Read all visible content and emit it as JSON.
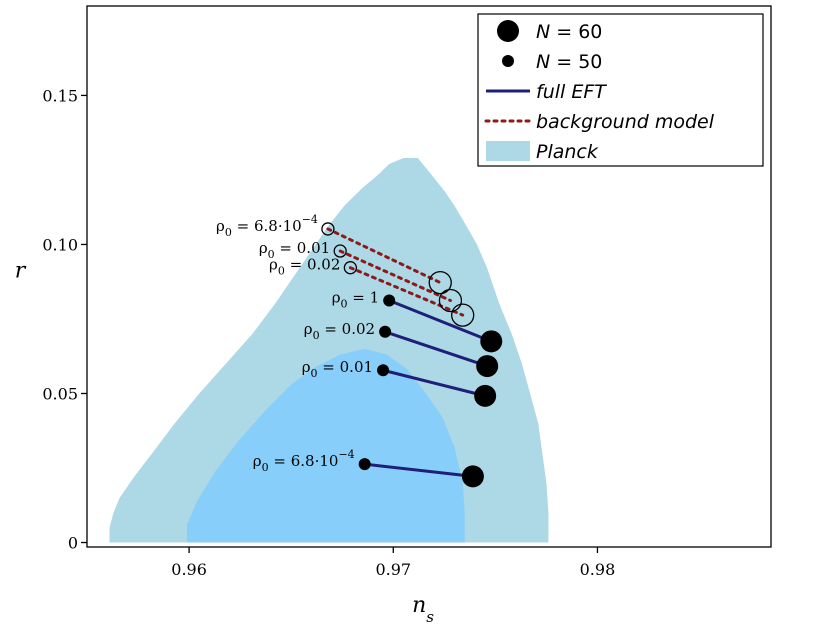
{
  "colors": {
    "planck_outer": "#add8e6",
    "planck_inner": "#87cefa",
    "full_eft": "#1f1f7a",
    "background_model": "#8b1a1a",
    "marker": "#000000"
  },
  "chart_data": {
    "type": "scatter",
    "xlabel": "n",
    "xlabel_sub": "s",
    "ylabel": "r",
    "xlim": [
      0.955,
      0.9885
    ],
    "ylim": [
      -0.0015,
      0.18
    ],
    "xticks": [
      0.96,
      0.97,
      0.98
    ],
    "xtick_labels": [
      "0.96",
      "0.97",
      "0.98"
    ],
    "yticks": [
      0,
      0.05,
      0.1,
      0.15
    ],
    "ytick_labels": [
      "0",
      "0.05",
      "0.10",
      "0.15"
    ],
    "legend": {
      "position": "top-right",
      "entries": [
        {
          "kind": "big-dot",
          "label_italic": "N",
          "label_rest": " = 60"
        },
        {
          "kind": "small-dot",
          "label_italic": "N",
          "label_rest": " = 50"
        },
        {
          "kind": "solid-line",
          "label_italic": "full EFT",
          "label_rest": ""
        },
        {
          "kind": "dotted-line",
          "label_italic": "background model",
          "label_rest": ""
        },
        {
          "kind": "patch",
          "label_italic": "Planck",
          "label_rest": ""
        }
      ]
    },
    "planck_outer_contour": [
      [
        0.9561,
        0.0
      ],
      [
        0.9561,
        0.005
      ],
      [
        0.9563,
        0.01
      ],
      [
        0.9566,
        0.015
      ],
      [
        0.9573,
        0.022
      ],
      [
        0.9582,
        0.03
      ],
      [
        0.9593,
        0.04
      ],
      [
        0.9605,
        0.05
      ],
      [
        0.9618,
        0.06
      ],
      [
        0.9631,
        0.07
      ],
      [
        0.9642,
        0.08
      ],
      [
        0.9652,
        0.09
      ],
      [
        0.9662,
        0.1
      ],
      [
        0.9668,
        0.106
      ],
      [
        0.9676,
        0.113
      ],
      [
        0.9685,
        0.119
      ],
      [
        0.9692,
        0.123
      ],
      [
        0.9698,
        0.127
      ],
      [
        0.9705,
        0.129
      ],
      [
        0.9712,
        0.129
      ],
      [
        0.9718,
        0.124
      ],
      [
        0.9725,
        0.118
      ],
      [
        0.973,
        0.113
      ],
      [
        0.9736,
        0.106
      ],
      [
        0.9741,
        0.1
      ],
      [
        0.9746,
        0.092
      ],
      [
        0.9752,
        0.08
      ],
      [
        0.9758,
        0.07
      ],
      [
        0.9763,
        0.06
      ],
      [
        0.9767,
        0.05
      ],
      [
        0.9771,
        0.04
      ],
      [
        0.9773,
        0.03
      ],
      [
        0.9775,
        0.02
      ],
      [
        0.9776,
        0.01
      ],
      [
        0.9776,
        0.0
      ]
    ],
    "planck_inner_contour": [
      [
        0.9599,
        0.0
      ],
      [
        0.9599,
        0.006
      ],
      [
        0.9604,
        0.014
      ],
      [
        0.9613,
        0.024
      ],
      [
        0.9624,
        0.034
      ],
      [
        0.9637,
        0.044
      ],
      [
        0.965,
        0.053
      ],
      [
        0.9662,
        0.059
      ],
      [
        0.9674,
        0.063
      ],
      [
        0.9686,
        0.065
      ],
      [
        0.9697,
        0.063
      ],
      [
        0.9707,
        0.058
      ],
      [
        0.9716,
        0.05
      ],
      [
        0.9724,
        0.042
      ],
      [
        0.973,
        0.032
      ],
      [
        0.9734,
        0.02
      ],
      [
        0.9735,
        0.01
      ],
      [
        0.9735,
        0.0
      ]
    ],
    "series": [
      {
        "name": "full EFT",
        "rho_label": "6.8·10",
        "rho_exp": "−4",
        "n50": [
          0.9686,
          0.0263
        ],
        "n60": [
          0.9739,
          0.0222
        ]
      },
      {
        "name": "full EFT",
        "rho_label": "0.01",
        "rho_exp": "",
        "n50": [
          0.9695,
          0.0578
        ],
        "n60": [
          0.9745,
          0.0492
        ]
      },
      {
        "name": "full EFT",
        "rho_label": "0.02",
        "rho_exp": "",
        "n50": [
          0.9696,
          0.0707
        ],
        "n60": [
          0.9746,
          0.0592
        ]
      },
      {
        "name": "full EFT",
        "rho_label": "1",
        "rho_exp": "",
        "n50": [
          0.9698,
          0.0812
        ],
        "n60": [
          0.9748,
          0.0675
        ]
      },
      {
        "name": "background model",
        "rho_label": "6.8·10",
        "rho_exp": "−4",
        "n50": [
          0.9668,
          0.1052
        ],
        "n60": [
          0.9723,
          0.0872
        ]
      },
      {
        "name": "background model",
        "rho_label": "0.01",
        "rho_exp": "",
        "n50": [
          0.9674,
          0.0978
        ],
        "n60": [
          0.9728,
          0.0812
        ]
      },
      {
        "name": "background model",
        "rho_label": "0.02",
        "rho_exp": "",
        "n50": [
          0.9679,
          0.0922
        ],
        "n60": [
          0.9734,
          0.0763
        ]
      }
    ],
    "annotations": [
      {
        "rho_label": "6.8·10",
        "rho_exp": "−4",
        "anchor": [
          0.9668,
          0.1052
        ]
      },
      {
        "rho_label": "0.01",
        "rho_exp": "",
        "anchor": [
          0.9674,
          0.0978
        ]
      },
      {
        "rho_label": "0.02",
        "rho_exp": "",
        "anchor": [
          0.9679,
          0.0922
        ]
      },
      {
        "rho_label": "1",
        "rho_exp": "",
        "anchor": [
          0.9698,
          0.0812
        ]
      },
      {
        "rho_label": "0.02",
        "rho_exp": "",
        "anchor": [
          0.9696,
          0.0707
        ]
      },
      {
        "rho_label": "0.01",
        "rho_exp": "",
        "anchor": [
          0.9695,
          0.0578
        ]
      },
      {
        "rho_label": "6.8·10",
        "rho_exp": "−4",
        "anchor": [
          0.9686,
          0.0263
        ]
      }
    ],
    "rho_symbol": "ρ",
    "rho_subscript": "0",
    "rho_equals": " = "
  }
}
